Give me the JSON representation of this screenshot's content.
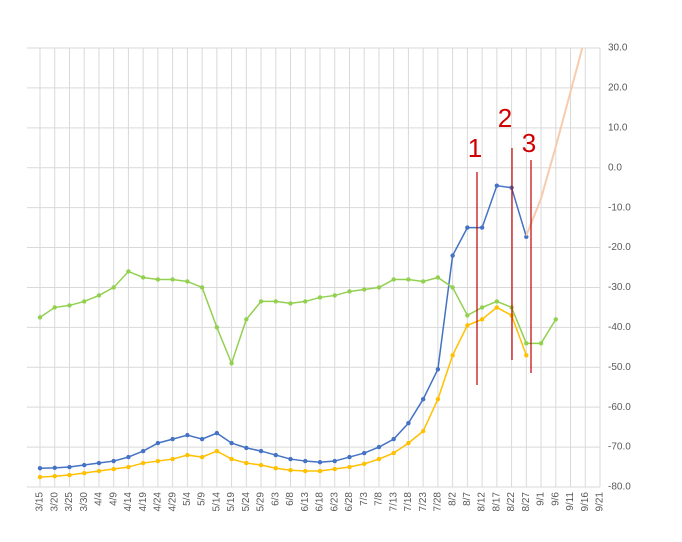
{
  "chart_data": {
    "type": "line",
    "categories": [
      "3/15",
      "3/20",
      "3/25",
      "3/30",
      "4/4",
      "4/9",
      "4/14",
      "4/19",
      "4/24",
      "4/29",
      "5/4",
      "5/9",
      "5/14",
      "5/19",
      "5/24",
      "5/29",
      "6/3",
      "6/8",
      "6/13",
      "6/18",
      "6/23",
      "6/28",
      "7/3",
      "7/8",
      "7/13",
      "7/18",
      "7/23",
      "7/28",
      "8/2",
      "8/7",
      "8/12",
      "8/17",
      "8/22",
      "8/27",
      "9/1",
      "9/6",
      "9/11",
      "9/16",
      "9/21"
    ],
    "series": [
      {
        "color": "#4472c4",
        "markers": true,
        "values": [
          -75.3,
          -75.2,
          -75,
          -74.5,
          -74,
          -73.5,
          -72.5,
          -71,
          -69,
          -68,
          -67,
          -68,
          -66.5,
          -69,
          -70.2,
          -71,
          -72,
          -73,
          -73.5,
          -73.8,
          -73.5,
          -72.5,
          -71.5,
          -70,
          -68,
          -64,
          -58,
          -50.5,
          -22,
          -15,
          -15,
          -4.5,
          -5,
          -17.3,
          null,
          null,
          null,
          null,
          null
        ]
      },
      {
        "color": "#ffc000",
        "markers": true,
        "values": [
          -77.5,
          -77.3,
          -77,
          -76.5,
          -76,
          -75.5,
          -75,
          -74,
          -73.5,
          -73,
          -72,
          -72.5,
          -71,
          -73,
          -74,
          -74.5,
          -75.3,
          -75.8,
          -76,
          -76,
          -75.5,
          -75,
          -74.2,
          -73,
          -71.5,
          -69,
          -66,
          -58,
          -47,
          -39.5,
          -38,
          -35,
          -37,
          -47,
          null,
          null,
          null,
          null,
          null
        ]
      },
      {
        "color": "#92d050",
        "markers": true,
        "values": [
          -37.5,
          -35,
          -34.5,
          -33.5,
          -32,
          -30,
          -26,
          -27.5,
          -28,
          -28,
          -28.5,
          -30,
          -40,
          -49,
          -38,
          -33.5,
          -33.5,
          -34,
          -33.5,
          -32.5,
          -32,
          -31,
          -30.5,
          -30,
          -28,
          -28,
          -28.5,
          -27.5,
          -30,
          -37,
          -35,
          -33.5,
          -35,
          -44,
          -44,
          -38,
          null,
          null,
          null
        ]
      },
      {
        "color": "#f8cbad",
        "markers": false,
        "values": [
          null,
          null,
          null,
          null,
          null,
          null,
          null,
          null,
          null,
          null,
          null,
          null,
          null,
          null,
          null,
          null,
          null,
          null,
          null,
          null,
          null,
          null,
          null,
          null,
          null,
          null,
          null,
          null,
          null,
          null,
          null,
          null,
          null,
          -17,
          -7.7,
          5.3,
          19,
          32.8,
          null
        ]
      }
    ],
    "ylim": [
      -80,
      30
    ],
    "yticks": [
      {
        "value": -80,
        "label": "-80.0"
      },
      {
        "value": -70,
        "label": "-70.0"
      },
      {
        "value": -60,
        "label": "-60.0"
      },
      {
        "value": -50,
        "label": "-50.0"
      },
      {
        "value": -40,
        "label": "-40.0"
      },
      {
        "value": -30,
        "label": "-30.0"
      },
      {
        "value": -20,
        "label": "-20.0"
      },
      {
        "value": -10,
        "label": "-10.0"
      },
      {
        "value": 0,
        "label": "0.0"
      },
      {
        "value": 10,
        "label": "10.0"
      },
      {
        "value": 20,
        "label": "20.0"
      },
      {
        "value": 30,
        "label": "30.0"
      }
    ],
    "grid": true,
    "annotations": [
      "1",
      "2",
      "3"
    ]
  }
}
